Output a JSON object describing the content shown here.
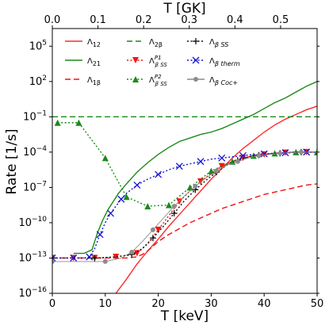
{
  "chart_data": {
    "type": "line",
    "xlabel": "T [keV]",
    "ylabel": "Rate [1/s]",
    "x2label": "T [GK]",
    "xlim": [
      0,
      50
    ],
    "ylim_log10": [
      -16,
      6.5
    ],
    "yscale": "log",
    "x2lim_GK": [
      0,
      0.58
    ],
    "x_ticks": [
      0,
      10,
      20,
      30,
      40,
      50
    ],
    "x_tick_labels": [
      "0",
      "10",
      "20",
      "30",
      "40",
      "50"
    ],
    "x2_ticks": [
      0.0,
      0.1,
      0.2,
      0.3,
      0.4,
      0.5
    ],
    "x2_tick_labels": [
      "0.0",
      "0.1",
      "0.2",
      "0.3",
      "0.4",
      "0.5"
    ],
    "y_ticks_log10": [
      -16,
      -13,
      -10,
      -7,
      -4,
      -1,
      2,
      5
    ],
    "y_tick_base": "10",
    "y_tick_exponents": [
      "−16",
      "−13",
      "−10",
      "−7",
      "−4",
      "−1",
      "2",
      "5"
    ],
    "legend_position": "upper-left",
    "series": [
      {
        "name": "Λ12",
        "color": "#ff2a2a",
        "style": "solid",
        "points": [
          [
            12,
            -16
          ],
          [
            14,
            -14.8
          ],
          [
            16,
            -13.5
          ],
          [
            18,
            -12.4
          ],
          [
            20,
            -11.4
          ],
          [
            22,
            -10.3
          ],
          [
            24,
            -9.3
          ],
          [
            26,
            -8.3
          ],
          [
            28,
            -7.3
          ],
          [
            30,
            -6.3
          ],
          [
            32,
            -5.4
          ],
          [
            34,
            -4.5
          ],
          [
            36,
            -3.7
          ],
          [
            38,
            -3.0
          ],
          [
            40,
            -2.3
          ],
          [
            42,
            -1.7
          ],
          [
            44,
            -1.2
          ],
          [
            46,
            -0.8
          ],
          [
            48,
            -0.4
          ],
          [
            50,
            -0.1
          ]
        ]
      },
      {
        "name": "Λ21",
        "color": "#1a8a1a",
        "style": "solid",
        "points": [
          [
            4,
            -12.6
          ],
          [
            6,
            -12.6
          ],
          [
            7.5,
            -12.3
          ],
          [
            8.5,
            -10.9
          ],
          [
            9.5,
            -9.8
          ],
          [
            10.5,
            -8.9
          ],
          [
            11.5,
            -8.2
          ],
          [
            12.5,
            -7.5
          ],
          [
            14,
            -6.7
          ],
          [
            16,
            -5.7
          ],
          [
            18,
            -4.9
          ],
          [
            20,
            -4.2
          ],
          [
            22,
            -3.6
          ],
          [
            24,
            -3.1
          ],
          [
            26,
            -2.8
          ],
          [
            28,
            -2.5
          ],
          [
            30,
            -2.3
          ],
          [
            32,
            -2.0
          ],
          [
            34,
            -1.6
          ],
          [
            36,
            -1.2
          ],
          [
            38,
            -0.8
          ],
          [
            40,
            -0.3
          ],
          [
            42,
            0.2
          ],
          [
            44,
            0.6
          ],
          [
            46,
            1.1
          ],
          [
            48,
            1.6
          ],
          [
            50,
            2.0
          ]
        ]
      },
      {
        "name": "Λ1β",
        "color": "#ee1111",
        "style": "dashed",
        "points": [
          [
            0,
            -13
          ],
          [
            14,
            -13
          ],
          [
            16,
            -12.9
          ],
          [
            17,
            -12.7
          ],
          [
            18,
            -12.4
          ],
          [
            19,
            -12.0
          ],
          [
            20,
            -11.6
          ],
          [
            22,
            -11.0
          ],
          [
            24,
            -10.5
          ],
          [
            26,
            -10.0
          ],
          [
            28,
            -9.6
          ],
          [
            30,
            -9.2
          ],
          [
            32,
            -8.8
          ],
          [
            34,
            -8.5
          ],
          [
            36,
            -8.2
          ],
          [
            38,
            -7.9
          ],
          [
            40,
            -7.6
          ],
          [
            42,
            -7.4
          ],
          [
            44,
            -7.2
          ],
          [
            46,
            -7.0
          ],
          [
            48,
            -6.8
          ],
          [
            50,
            -6.7
          ]
        ]
      },
      {
        "name": "Λ2β",
        "color": "#1a8a1a",
        "style": "dashed",
        "points": [
          [
            0,
            -1
          ],
          [
            50,
            -1
          ]
        ]
      },
      {
        "name": "Λβ SS P1",
        "color": "#ff1111",
        "style": "dotted",
        "marker": "triangle-down",
        "points": [
          [
            0,
            -13
          ],
          [
            2,
            -13
          ],
          [
            4,
            -13
          ],
          [
            6,
            -13
          ],
          [
            8,
            -13
          ],
          [
            10,
            -13
          ],
          [
            12,
            -12.9
          ],
          [
            14,
            -12.8
          ],
          [
            16,
            -12.6
          ],
          [
            18,
            -11.8
          ],
          [
            20,
            -10.6
          ],
          [
            22,
            -9.4
          ],
          [
            24,
            -8.2
          ],
          [
            26,
            -7.3
          ],
          [
            28,
            -6.5
          ],
          [
            30,
            -5.8
          ],
          [
            32,
            -5.2
          ],
          [
            34,
            -4.8
          ],
          [
            36,
            -4.5
          ],
          [
            38,
            -4.3
          ],
          [
            40,
            -4.2
          ],
          [
            42,
            -4.1
          ],
          [
            44,
            -4.05
          ],
          [
            46,
            -4.0
          ],
          [
            48,
            -4.0
          ],
          [
            50,
            -4.0
          ]
        ]
      },
      {
        "name": "Λβ SS P2",
        "color": "#1a8a1a",
        "style": "dotted",
        "marker": "triangle-up",
        "points": [
          [
            1,
            -1.5
          ],
          [
            5,
            -1.5
          ],
          [
            10,
            -4.5
          ],
          [
            14,
            -7.8
          ],
          [
            18,
            -8.6
          ],
          [
            22,
            -8.5
          ],
          [
            26,
            -7.0
          ],
          [
            30,
            -5.6
          ],
          [
            34,
            -4.8
          ],
          [
            38,
            -4.3
          ],
          [
            42,
            -4.1
          ],
          [
            46,
            -4.0
          ],
          [
            50,
            -4.0
          ]
        ]
      },
      {
        "name": "Λβ SS",
        "color": "#111111",
        "style": "dotted",
        "marker": "plus",
        "points": [
          [
            0,
            -13
          ],
          [
            4,
            -13
          ],
          [
            8,
            -13
          ],
          [
            12,
            -12.9
          ],
          [
            15,
            -12.7
          ],
          [
            17,
            -12.2
          ],
          [
            19,
            -11.3
          ],
          [
            21,
            -10.3
          ],
          [
            23,
            -9.2
          ],
          [
            25,
            -8.1
          ],
          [
            27,
            -7.2
          ],
          [
            29,
            -6.4
          ],
          [
            31,
            -5.7
          ],
          [
            33,
            -5.1
          ],
          [
            35,
            -4.7
          ],
          [
            37,
            -4.4
          ],
          [
            39,
            -4.25
          ],
          [
            41,
            -4.15
          ],
          [
            43,
            -4.1
          ],
          [
            45,
            -4.05
          ],
          [
            47,
            -4.0
          ],
          [
            49,
            -4.0
          ],
          [
            50,
            -4.0
          ]
        ]
      },
      {
        "name": "Λβ therm",
        "color": "#1414d4",
        "style": "dotted",
        "marker": "x",
        "points": [
          [
            0,
            -13
          ],
          [
            2,
            -13
          ],
          [
            4,
            -13
          ],
          [
            6,
            -13
          ],
          [
            7,
            -12.9
          ],
          [
            8,
            -12.2
          ],
          [
            9,
            -11.0
          ],
          [
            10,
            -10.0
          ],
          [
            11,
            -9.2
          ],
          [
            12,
            -8.6
          ],
          [
            13,
            -8.0
          ],
          [
            14,
            -7.5
          ],
          [
            16,
            -6.8
          ],
          [
            18,
            -6.3
          ],
          [
            20,
            -5.9
          ],
          [
            22,
            -5.5
          ],
          [
            24,
            -5.2
          ],
          [
            26,
            -5.0
          ],
          [
            28,
            -4.8
          ],
          [
            30,
            -4.6
          ],
          [
            32,
            -4.5
          ],
          [
            34,
            -4.4
          ],
          [
            36,
            -4.3
          ],
          [
            38,
            -4.2
          ],
          [
            40,
            -4.15
          ],
          [
            42,
            -4.1
          ],
          [
            44,
            -4.05
          ],
          [
            46,
            -4.0
          ],
          [
            48,
            -4.0
          ],
          [
            50,
            -4.0
          ]
        ]
      },
      {
        "name": "Λβ Coc+",
        "color": "#8c8c8c",
        "style": "solid",
        "marker": "circle",
        "points": [
          [
            0,
            -13.3
          ],
          [
            7.5,
            -13.3
          ],
          [
            10,
            -13.3
          ],
          [
            13,
            -13.0
          ],
          [
            15,
            -12.5
          ],
          [
            17,
            -11.6
          ],
          [
            19,
            -10.6
          ],
          [
            21,
            -9.6
          ],
          [
            23,
            -8.6
          ],
          [
            25,
            -7.7
          ],
          [
            27,
            -6.9
          ],
          [
            29,
            -6.2
          ],
          [
            31,
            -5.6
          ],
          [
            33,
            -5.1
          ],
          [
            35,
            -4.8
          ],
          [
            37,
            -4.5
          ],
          [
            39,
            -4.3
          ],
          [
            41,
            -4.2
          ],
          [
            43,
            -4.1
          ],
          [
            45,
            -4.05
          ],
          [
            47,
            -4.0
          ],
          [
            50,
            -4.0
          ]
        ]
      }
    ],
    "legend": [
      {
        "label_base": "Λ",
        "label_sub": "12",
        "label_sup": "",
        "color": "#ff2a2a",
        "style": "solid",
        "marker": "none"
      },
      {
        "label_base": "Λ",
        "label_sub": "21",
        "label_sup": "",
        "color": "#1a8a1a",
        "style": "solid",
        "marker": "none"
      },
      {
        "label_base": "Λ",
        "label_sub": "1β",
        "label_sup": "",
        "color": "#ee1111",
        "style": "dashed",
        "marker": "none"
      },
      {
        "label_base": "Λ",
        "label_sub": "2β",
        "label_sup": "",
        "color": "#1a8a1a",
        "style": "dashed",
        "marker": "none"
      },
      {
        "label_base": "Λ",
        "label_sub": "β SS",
        "label_sup": "P1",
        "color": "#ff1111",
        "style": "dotted",
        "marker": "triangle-down"
      },
      {
        "label_base": "Λ",
        "label_sub": "β SS",
        "label_sup": "P2",
        "color": "#1a8a1a",
        "style": "dotted",
        "marker": "triangle-up"
      },
      {
        "label_base": "Λ",
        "label_sub": "β SS",
        "label_sup": "",
        "color": "#111111",
        "style": "dotted",
        "marker": "plus"
      },
      {
        "label_base": "Λ",
        "label_sub": "β therm",
        "label_sup": "",
        "color": "#1414d4",
        "style": "dotted",
        "marker": "x"
      },
      {
        "label_base": "Λ",
        "label_sub": "β Coc+",
        "label_sup": "",
        "color": "#8c8c8c",
        "style": "solid",
        "marker": "circle"
      }
    ]
  }
}
